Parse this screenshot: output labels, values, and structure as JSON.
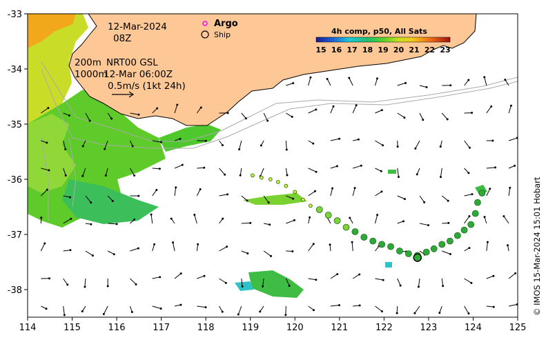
{
  "map": {
    "date": "12-Mar-2024",
    "time": "08Z",
    "isobath_shallow": "200m",
    "product": "NRT00 GSL",
    "isobath_deep": "1000m",
    "currents_time": "12-Mar 06:00Z",
    "scale_note": "0.5m/s (1kt 24h)",
    "legend_argo": "Argo",
    "legend_ship": "Ship",
    "colorbar_title": "4h comp, p50, All Sats",
    "colorbar_ticks": [
      "15",
      "16",
      "17",
      "18",
      "19",
      "20",
      "21",
      "22",
      "23"
    ],
    "credit": "© IMOS 15-Mar-2024 15:01 Hobart",
    "colors": {
      "land": "#fdc896",
      "argo": "#ff00ff",
      "track": "#22aa22"
    }
  },
  "axes": {
    "x_ticks": [
      "114",
      "115",
      "116",
      "117",
      "118",
      "119",
      "120",
      "121",
      "122",
      "123",
      "124",
      "125"
    ],
    "y_ticks": [
      "-33",
      "-34",
      "-35",
      "-36",
      "-37",
      "-38"
    ],
    "x_range": [
      114,
      125
    ],
    "y_range": [
      -38.5,
      -33
    ]
  },
  "ship_track": [
    [
      119.05,
      -35.93
    ],
    [
      119.25,
      -35.97
    ],
    [
      119.45,
      -36.0
    ],
    [
      119.62,
      -36.05
    ],
    [
      119.8,
      -36.12
    ],
    [
      120.0,
      -36.23
    ],
    [
      120.18,
      -36.37
    ],
    [
      120.35,
      -36.48
    ],
    [
      120.55,
      -36.55
    ],
    [
      120.75,
      -36.65
    ],
    [
      120.95,
      -36.75
    ],
    [
      121.15,
      -36.87
    ],
    [
      121.35,
      -36.95
    ],
    [
      121.55,
      -37.05
    ],
    [
      121.75,
      -37.12
    ],
    [
      121.95,
      -37.18
    ],
    [
      122.15,
      -37.22
    ],
    [
      122.35,
      -37.3
    ],
    [
      122.55,
      -37.35
    ],
    [
      122.75,
      -37.38
    ],
    [
      122.95,
      -37.32
    ],
    [
      123.12,
      -37.26
    ],
    [
      123.3,
      -37.18
    ],
    [
      123.48,
      -37.12
    ],
    [
      123.65,
      -37.02
    ],
    [
      123.8,
      -36.92
    ],
    [
      123.95,
      -36.82
    ],
    [
      124.05,
      -36.62
    ],
    [
      124.1,
      -36.42
    ],
    [
      124.2,
      -36.25
    ]
  ],
  "ship_position": [
    122.75,
    -37.42
  ]
}
